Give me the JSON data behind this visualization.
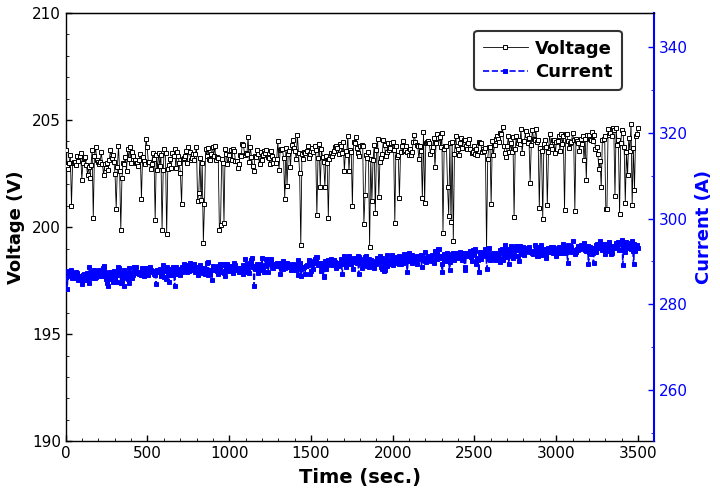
{
  "title": "",
  "xlabel": "Time (sec.)",
  "ylabel_left": "Voltage (V)",
  "ylabel_right": "Current (A)",
  "xlim": [
    0,
    3600
  ],
  "ylim_voltage": [
    190,
    210
  ],
  "ylim_current": [
    248,
    348
  ],
  "voltage_yticks": [
    190,
    195,
    200,
    205,
    210
  ],
  "current_yticks": [
    260,
    280,
    300,
    320,
    340
  ],
  "xticks": [
    0,
    500,
    1000,
    1500,
    2000,
    2500,
    3000,
    3500
  ],
  "legend_voltage": "Voltage",
  "legend_current": "Current",
  "voltage_color": "#000000",
  "current_color": "#0000ff",
  "figsize": [
    7.2,
    4.94
  ],
  "dpi": 100,
  "seed": 7,
  "n_points_voltage": 500,
  "n_points_current": 800,
  "voltage_base": 203.0,
  "voltage_trend": 0.00035,
  "voltage_noise": 0.35,
  "voltage_drop_prob": 0.12,
  "voltage_drop_min": 1.5,
  "voltage_drop_max": 4.0,
  "current_base": 286.5,
  "current_trend": 0.002,
  "current_noise": 0.8,
  "current_drop_prob": 0.06,
  "current_drop_min": 1.5,
  "current_drop_max": 4.0
}
